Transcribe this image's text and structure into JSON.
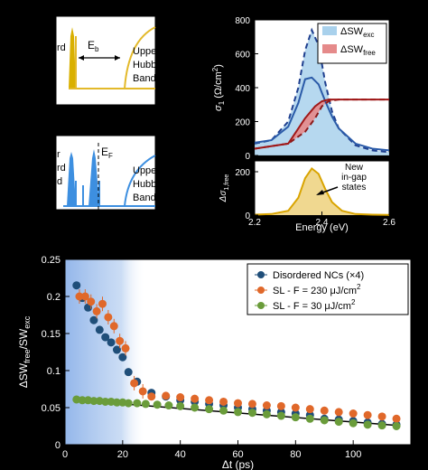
{
  "panel_top_left": {
    "labels": {
      "e_gap": "E",
      "e_gap_sub": "b",
      "upper_band": [
        "Uppe",
        "Hubb",
        "Band"
      ],
      "left_band": "rd"
    }
  },
  "panel_mid_left": {
    "labels": {
      "fermi": "E",
      "fermi_sub": "F",
      "upper_band": [
        "Uppe",
        "Hubb",
        "Band"
      ],
      "left_band": [
        "r",
        "rd",
        "d"
      ]
    }
  },
  "chart_data": [
    {
      "type": "area",
      "ylabel": "σ",
      "ylabel_sub": "1",
      "ylabel_units": "(Ω/cm",
      "ylabel_sup": "2",
      "ylabel_close": ")",
      "ylim": [
        0,
        800
      ],
      "yticks": [
        "0",
        "200",
        "400",
        "600",
        "800"
      ],
      "xlim": [
        2.2,
        2.6
      ],
      "legend": [
        {
          "name": "ΔSW",
          "sub": "exc",
          "color": "#a9d1ec"
        },
        {
          "name": "ΔSW",
          "sub": "free",
          "color": "#e58a8a"
        }
      ],
      "legend_position": "top-right",
      "series": [
        {
          "name": "exc_dashed",
          "x": [
            2.2,
            2.25,
            2.3,
            2.33,
            2.35,
            2.37,
            2.39,
            2.41,
            2.43,
            2.45,
            2.5,
            2.55,
            2.6
          ],
          "y": [
            70,
            90,
            200,
            400,
            620,
            740,
            650,
            430,
            260,
            160,
            60,
            30,
            20
          ]
        },
        {
          "name": "exc_solid",
          "x": [
            2.2,
            2.25,
            2.3,
            2.33,
            2.35,
            2.37,
            2.39,
            2.41,
            2.43,
            2.45,
            2.5,
            2.55,
            2.6
          ],
          "y": [
            75,
            90,
            170,
            310,
            450,
            460,
            420,
            320,
            230,
            160,
            70,
            40,
            30
          ]
        },
        {
          "name": "free_dashed",
          "x": [
            2.2,
            2.3,
            2.35,
            2.38,
            2.4,
            2.42,
            2.45,
            2.5,
            2.55,
            2.6
          ],
          "y": [
            40,
            70,
            140,
            220,
            290,
            320,
            330,
            330,
            330,
            330
          ]
        },
        {
          "name": "free_solid",
          "x": [
            2.2,
            2.3,
            2.35,
            2.38,
            2.4,
            2.42,
            2.45,
            2.5,
            2.55,
            2.6
          ],
          "y": [
            40,
            70,
            220,
            290,
            320,
            330,
            330,
            330,
            330,
            330
          ]
        }
      ]
    },
    {
      "type": "area",
      "ylabel": "Δσ",
      "ylabel_sub": "1,free",
      "xlabel": "Energy (eV)",
      "ylim": [
        0,
        250
      ],
      "yticks": [
        "0",
        "200"
      ],
      "xlim": [
        2.2,
        2.6
      ],
      "xticks": [
        "2.2",
        "2.4",
        "2.6"
      ],
      "annotation": [
        "New",
        "in-gap",
        "states"
      ],
      "series": [
        {
          "name": "in_gap",
          "x": [
            2.2,
            2.25,
            2.3,
            2.33,
            2.35,
            2.37,
            2.39,
            2.41,
            2.43,
            2.46,
            2.5,
            2.55,
            2.6
          ],
          "y": [
            2,
            5,
            20,
            80,
            170,
            215,
            190,
            120,
            60,
            20,
            5,
            2,
            1
          ]
        }
      ]
    },
    {
      "type": "scatter",
      "ylabel": "ΔSW",
      "ylabel_sub1": "free",
      "ylabel_mid": "/SW",
      "ylabel_sub2": "exc",
      "xlabel": "Δt (ps)",
      "xlim": [
        0,
        120
      ],
      "ylim": [
        0,
        0.25
      ],
      "xticks": [
        "0",
        "20",
        "40",
        "60",
        "80",
        "100"
      ],
      "yticks": [
        "0",
        "0.05",
        "0.1",
        "0.15",
        "0.2",
        "0.25"
      ],
      "legend_position": "top-right",
      "series": [
        {
          "name": "Disordered NCs (×4)",
          "color": "#1f4e79",
          "x": [
            4,
            6,
            8,
            10,
            12,
            14,
            16,
            18,
            20,
            22,
            25,
            30,
            35,
            40,
            45,
            50,
            55,
            60,
            65,
            70,
            75,
            80,
            85,
            90,
            95,
            100,
            105,
            110,
            115
          ],
          "y": [
            0.215,
            0.198,
            0.185,
            0.168,
            0.155,
            0.145,
            0.138,
            0.128,
            0.118,
            0.098,
            0.085,
            0.07,
            0.065,
            0.06,
            0.058,
            0.055,
            0.053,
            0.05,
            0.048,
            0.046,
            0.044,
            0.042,
            0.04,
            0.035,
            0.034,
            0.032,
            0.03,
            0.028,
            0.027
          ]
        },
        {
          "name": "SL - F = 230 μJ/cm",
          "sup": "2",
          "color": "#e0682a",
          "x": [
            5,
            7,
            9,
            11,
            13,
            15,
            17,
            19,
            21,
            24,
            27,
            30,
            35,
            40,
            45,
            50,
            55,
            60,
            65,
            70,
            75,
            80,
            85,
            90,
            95,
            100,
            105,
            110,
            115
          ],
          "y": [
            0.2,
            0.2,
            0.193,
            0.18,
            0.19,
            0.172,
            0.16,
            0.14,
            0.13,
            0.083,
            0.072,
            0.065,
            0.066,
            0.064,
            0.062,
            0.06,
            0.058,
            0.056,
            0.055,
            0.053,
            0.052,
            0.05,
            0.048,
            0.046,
            0.044,
            0.042,
            0.04,
            0.038,
            0.035
          ]
        },
        {
          "name": "SL - F = 30 μJ/cm",
          "sup": "2",
          "color": "#6a9c3a",
          "x": [
            4,
            6,
            8,
            10,
            12,
            14,
            16,
            18,
            20,
            22,
            25,
            28,
            32,
            36,
            40,
            45,
            50,
            55,
            60,
            65,
            70,
            75,
            80,
            85,
            90,
            95,
            100,
            105,
            110,
            115
          ],
          "y": [
            0.061,
            0.06,
            0.06,
            0.059,
            0.059,
            0.058,
            0.058,
            0.057,
            0.057,
            0.056,
            0.056,
            0.055,
            0.054,
            0.053,
            0.052,
            0.05,
            0.048,
            0.046,
            0.044,
            0.043,
            0.041,
            0.039,
            0.037,
            0.035,
            0.033,
            0.031,
            0.029,
            0.027,
            0.026,
            0.025
          ]
        }
      ],
      "fit_line": {
        "x": [
          4,
          115
        ],
        "y": [
          0.06,
          0.026
        ]
      }
    }
  ]
}
